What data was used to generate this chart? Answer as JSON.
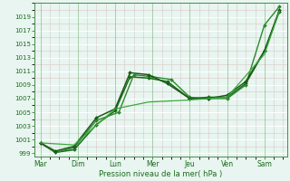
{
  "xlabel": "Pression niveau de la mer( hPa )",
  "background_color": "#e8f5f0",
  "plot_bg": "#e8f5f0",
  "line_color": "#1a6b1a",
  "ylim": [
    998.5,
    1021
  ],
  "yticks": [
    999,
    1001,
    1003,
    1005,
    1007,
    1009,
    1011,
    1013,
    1015,
    1017,
    1019
  ],
  "xtick_labels": [
    "Mar",
    "Dim",
    "Lun",
    "Mer",
    "Jeu",
    "Ven",
    "Sam"
  ],
  "x_positions": [
    0,
    1,
    2,
    3,
    4,
    5,
    6
  ],
  "xlim": [
    -0.15,
    6.6
  ],
  "series": [
    {
      "x": [
        0,
        0.4,
        0.9,
        1.5,
        2.0,
        2.4,
        2.9,
        3.4,
        4.0,
        4.5,
        5.0,
        5.5,
        6.0,
        6.4
      ],
      "y": [
        1000.5,
        999.1,
        999.5,
        1003.2,
        1005.2,
        1010.2,
        1010.0,
        1009.5,
        1007.0,
        1007.2,
        1007.2,
        1009.2,
        1014.0,
        1019.8
      ],
      "color": "#1a6b1a",
      "lw": 1.1,
      "marker": true
    },
    {
      "x": [
        0,
        0.4,
        0.9,
        1.5,
        2.1,
        2.5,
        3.0,
        3.5,
        4.0,
        4.5,
        5.0,
        5.5,
        6.0,
        6.4
      ],
      "y": [
        1000.5,
        999.1,
        999.8,
        1003.8,
        1005.0,
        1010.5,
        1010.2,
        1009.8,
        1007.2,
        1007.0,
        1007.0,
        1009.0,
        1017.8,
        1020.5
      ],
      "color": "#2a8a2a",
      "lw": 1.0,
      "marker": true
    },
    {
      "x": [
        0,
        0.4,
        0.9,
        1.5,
        2.0,
        2.4,
        2.9,
        3.4,
        4.0,
        4.5,
        5.0,
        5.5,
        6.0,
        6.4
      ],
      "y": [
        1000.5,
        999.3,
        1000.0,
        1004.2,
        1005.5,
        1010.8,
        1010.5,
        1009.2,
        1007.0,
        1007.0,
        1007.5,
        1009.5,
        1014.0,
        1020.0
      ],
      "color": "#1a5a1a",
      "lw": 1.1,
      "marker": true
    },
    {
      "x": [
        0,
        0.9,
        2.0,
        2.9,
        4.0,
        5.0,
        6.0,
        6.4
      ],
      "y": [
        1000.5,
        1000.2,
        1005.5,
        1006.5,
        1006.8,
        1007.2,
        1013.5,
        1019.8
      ],
      "color": "#3aab3a",
      "lw": 0.9,
      "marker": false
    }
  ]
}
